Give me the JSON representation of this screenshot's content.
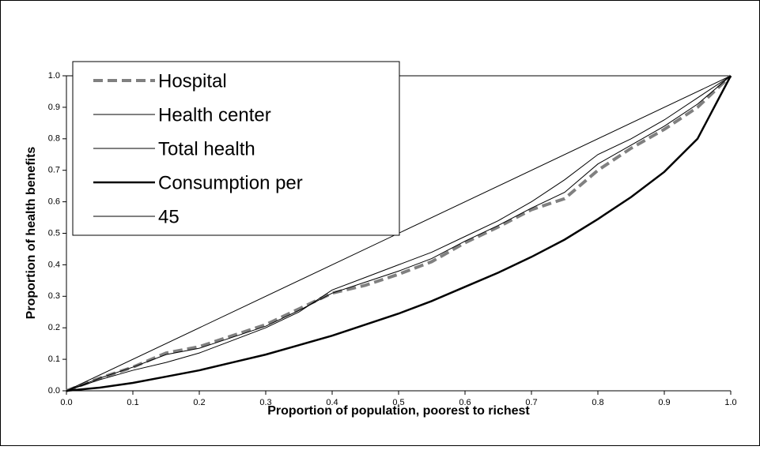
{
  "chart_data": {
    "type": "line",
    "xlabel": "Proportion of population, poorest to richest",
    "ylabel": "Proportion of health benefits",
    "xlim": [
      0,
      1
    ],
    "ylim": [
      0,
      1
    ],
    "xticks": [
      {
        "value": 0,
        "label": "0.0"
      },
      0.1,
      0.2,
      0.3,
      0.4,
      0.5,
      0.6,
      0.7,
      0.8,
      0.9,
      {
        "value": 1,
        "label": "1.0"
      }
    ],
    "yticks": [
      {
        "value": 0,
        "label": "0.0"
      },
      0.1,
      0.2,
      0.3,
      0.4,
      0.5,
      0.6,
      0.7,
      0.8,
      0.9,
      {
        "value": 1,
        "label": "1.0"
      }
    ],
    "legend": "upper left",
    "series": [
      {
        "name": "Hospital",
        "color": "#808080",
        "style": "dashed",
        "width": 4,
        "x": [
          0,
          0.05,
          0.1,
          0.15,
          0.2,
          0.25,
          0.3,
          0.35,
          0.4,
          0.45,
          0.5,
          0.55,
          0.6,
          0.65,
          0.7,
          0.75,
          0.8,
          0.85,
          0.9,
          0.95,
          1
        ],
        "values": [
          0,
          0.04,
          0.075,
          0.12,
          0.14,
          0.175,
          0.21,
          0.26,
          0.31,
          0.335,
          0.37,
          0.41,
          0.47,
          0.52,
          0.575,
          0.61,
          0.7,
          0.77,
          0.83,
          0.9,
          1
        ]
      },
      {
        "name": "Health center",
        "color": "#000000",
        "style": "solid",
        "width": 1,
        "x": [
          0,
          0.05,
          0.1,
          0.15,
          0.2,
          0.25,
          0.3,
          0.35,
          0.4,
          0.45,
          0.5,
          0.55,
          0.6,
          0.65,
          0.7,
          0.75,
          0.8,
          0.85,
          0.9,
          0.95,
          1
        ],
        "values": [
          0,
          0.035,
          0.065,
          0.09,
          0.12,
          0.16,
          0.2,
          0.25,
          0.32,
          0.36,
          0.4,
          0.44,
          0.49,
          0.54,
          0.6,
          0.67,
          0.75,
          0.8,
          0.86,
          0.93,
          1
        ]
      },
      {
        "name": "Total health",
        "color": "#000000",
        "style": "solid",
        "width": 1,
        "x": [
          0,
          0.05,
          0.1,
          0.15,
          0.2,
          0.25,
          0.3,
          0.35,
          0.4,
          0.45,
          0.5,
          0.55,
          0.6,
          0.65,
          0.7,
          0.75,
          0.8,
          0.85,
          0.9,
          0.95,
          1
        ],
        "values": [
          0,
          0.04,
          0.075,
          0.115,
          0.135,
          0.17,
          0.205,
          0.255,
          0.31,
          0.345,
          0.38,
          0.42,
          0.475,
          0.525,
          0.58,
          0.63,
          0.72,
          0.78,
          0.84,
          0.91,
          1
        ]
      },
      {
        "name": "Consumption per",
        "color": "#000000",
        "style": "solid",
        "width": 2.5,
        "x": [
          0,
          0.05,
          0.1,
          0.15,
          0.2,
          0.25,
          0.3,
          0.35,
          0.4,
          0.45,
          0.5,
          0.55,
          0.6,
          0.65,
          0.7,
          0.75,
          0.8,
          0.85,
          0.9,
          0.95,
          1
        ],
        "values": [
          0,
          0.01,
          0.025,
          0.045,
          0.065,
          0.09,
          0.115,
          0.145,
          0.175,
          0.21,
          0.245,
          0.285,
          0.33,
          0.375,
          0.425,
          0.48,
          0.545,
          0.615,
          0.695,
          0.8,
          1
        ]
      },
      {
        "name": "45",
        "color": "#000000",
        "style": "solid",
        "width": 1,
        "x": [
          0,
          1
        ],
        "values": [
          0,
          1
        ]
      }
    ]
  }
}
